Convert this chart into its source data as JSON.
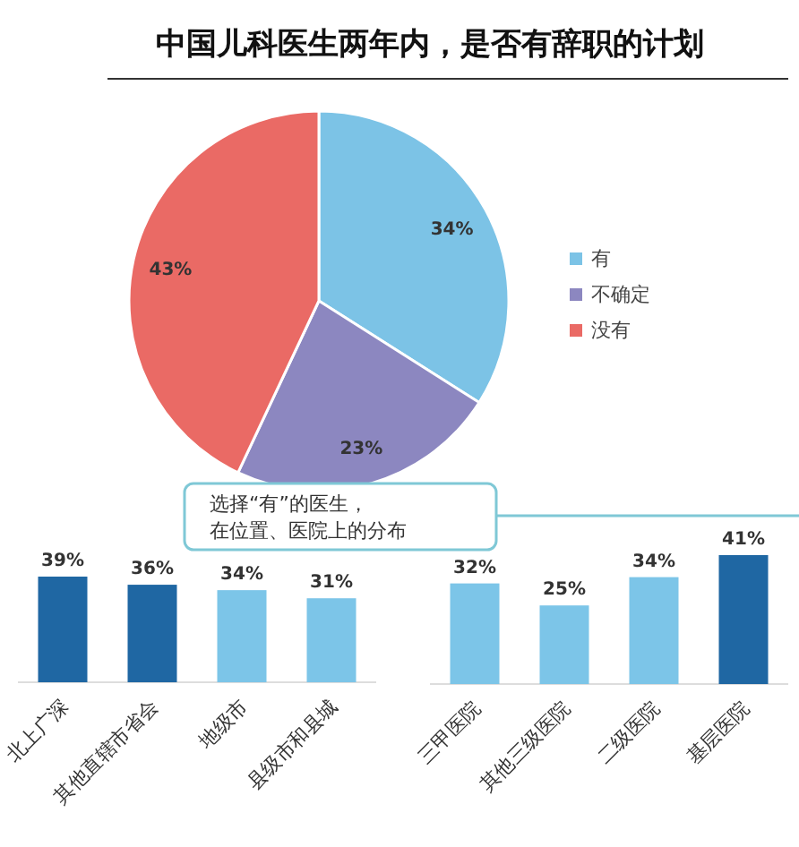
{
  "chart_data": [
    {
      "type": "pie",
      "title": "中国儿科医生两年内，是否有辞职的计划",
      "categories": [
        "有",
        "不确定",
        "没有"
      ],
      "values": [
        34,
        23,
        43
      ],
      "colors": [
        "#7cc3e6",
        "#8c87c0",
        "#ea6a65"
      ],
      "value_labels": [
        "34%",
        "23%",
        "43%"
      ],
      "legend": "right"
    },
    {
      "type": "bar",
      "categories": [
        "北上广深",
        "其他直辖市省会",
        "地级市",
        "县级市和县城"
      ],
      "values": [
        39,
        36,
        34,
        31
      ],
      "colors": [
        "#1f67a3",
        "#1f67a3",
        "#7cc5e8",
        "#7cc5e8"
      ],
      "value_labels": [
        "39%",
        "36%",
        "34%",
        "31%"
      ]
    },
    {
      "type": "bar",
      "categories": [
        "三甲医院",
        "其他三级医院",
        "二级医院",
        "基层医院"
      ],
      "values": [
        32,
        25,
        34,
        41
      ],
      "colors": [
        "#7cc5e8",
        "#7cc5e8",
        "#7cc5e8",
        "#1f67a3"
      ],
      "value_labels": [
        "32%",
        "25%",
        "34%",
        "41%"
      ],
      "annotations": [
        "选择“有”的医生，在位置、医院上的分布"
      ]
    }
  ]
}
